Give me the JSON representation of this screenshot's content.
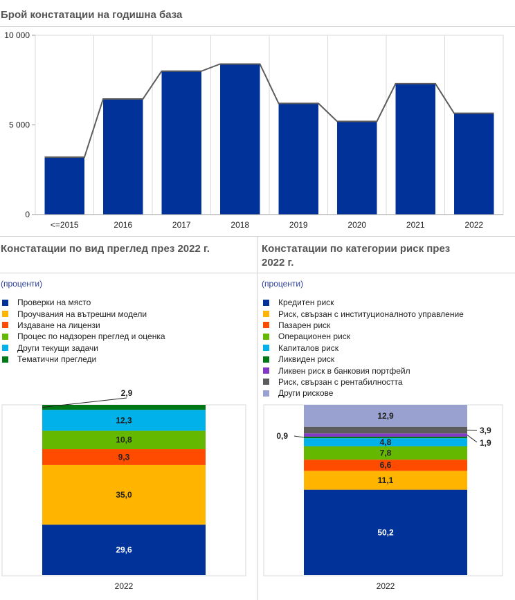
{
  "colors": {
    "darkblue": "#003299",
    "yellow": "#ffb400",
    "orange": "#ff4b00",
    "green": "#65b800",
    "cyan": "#00b1ea",
    "darkgreen": "#007816",
    "purple": "#8139c6",
    "gray": "#5c5c5c",
    "lavender": "#98a1d0"
  },
  "top": {
    "title": "Брой констатации на годишна база",
    "chart_data": {
      "type": "bar",
      "categories": [
        "<=2015",
        "2016",
        "2017",
        "2018",
        "2019",
        "2020",
        "2021",
        "2022"
      ],
      "values": [
        3200,
        6450,
        8000,
        8400,
        6200,
        5200,
        7300,
        5650
      ],
      "ylim": [
        0,
        10000
      ],
      "yticks": [
        0,
        5000,
        10000
      ],
      "ytick_labels": [
        "0",
        "5 000",
        "10 000"
      ],
      "bar_color": "#003299",
      "connector_line": true,
      "grid": "vertical"
    }
  },
  "left": {
    "title": "Констатации по вид преглед през 2022 г.",
    "note": "(проценти)",
    "chart_data": {
      "type": "bar",
      "stacked": true,
      "categories": [
        "2022"
      ],
      "series": [
        {
          "name": "Проверки на място",
          "value": 29.6,
          "label": "29,6",
          "color": "#003299"
        },
        {
          "name": "Проучвания на вътрешни модели",
          "value": 35.0,
          "label": "35,0",
          "color": "#ffb400"
        },
        {
          "name": "Издаване на лицензи",
          "value": 9.3,
          "label": "9,3",
          "color": "#ff4b00"
        },
        {
          "name": "Процес по надзорен преглед и оценка",
          "value": 10.8,
          "label": "10,8",
          "color": "#65b800"
        },
        {
          "name": "Други текущи задачи",
          "value": 12.3,
          "label": "12,3",
          "color": "#00b1ea"
        },
        {
          "name": "Тематични прегледи",
          "value": 2.9,
          "label": "2,9",
          "color": "#007816"
        }
      ]
    }
  },
  "right": {
    "title_line1": "Констатации по категории риск през",
    "title_line2": "2022 г.",
    "note": "(проценти)",
    "chart_data": {
      "type": "bar",
      "stacked": true,
      "categories": [
        "2022"
      ],
      "series": [
        {
          "name": "Кредитен риск",
          "value": 50.2,
          "label": "50,2",
          "color": "#003299"
        },
        {
          "name": "Риск, свързан с институционалното управление",
          "value": 11.1,
          "label": "11,1",
          "color": "#ffb400"
        },
        {
          "name": "Пазарен риск",
          "value": 6.6,
          "label": "6,6",
          "color": "#ff4b00"
        },
        {
          "name": "Операционен риск",
          "value": 7.8,
          "label": "7,8",
          "color": "#65b800"
        },
        {
          "name": "Капиталов риск",
          "value": 4.8,
          "label": "4,8",
          "color": "#00b1ea"
        },
        {
          "name": "Ликвиден риск",
          "value": 0.9,
          "label": "0,9",
          "color": "#007816"
        },
        {
          "name": "Ликвен риск в банковия портфейл",
          "value": 1.9,
          "label": "1,9",
          "color": "#8139c6"
        },
        {
          "name": "Риск, свързан с рентабилността",
          "value": 3.9,
          "label": "3,9",
          "color": "#5c5c5c"
        },
        {
          "name": "Други рискове",
          "value": 12.9,
          "label": "12,9",
          "color": "#98a1d0"
        }
      ]
    }
  }
}
